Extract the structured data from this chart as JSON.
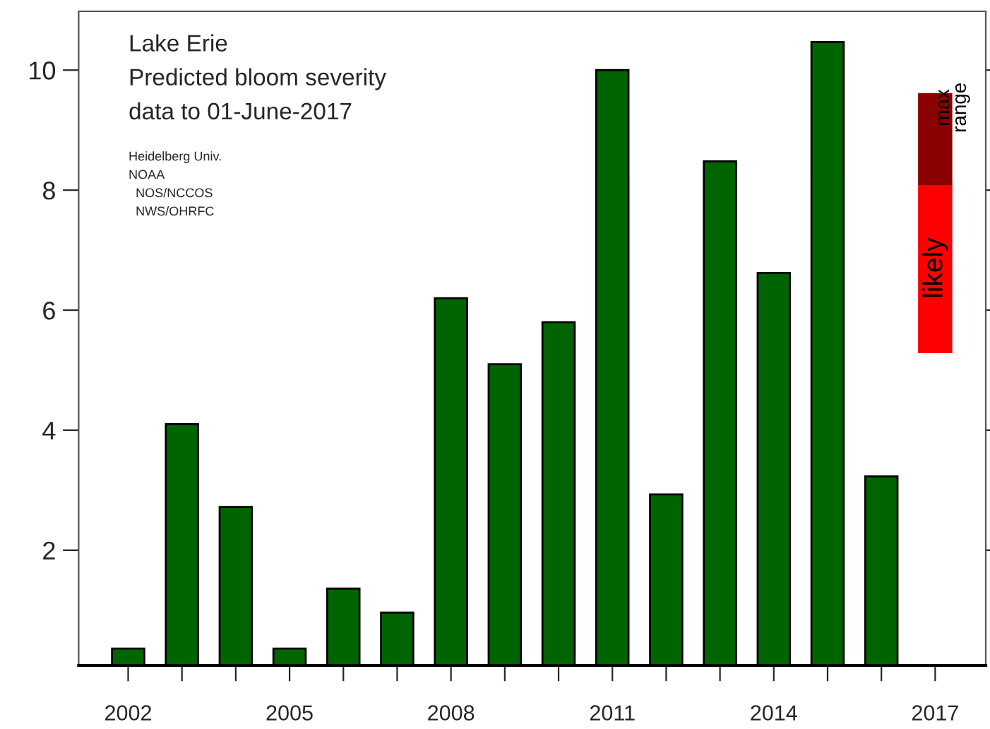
{
  "chart_data": {
    "type": "bar",
    "title": "Lake Erie",
    "subtitle": "Predicted bloom severity",
    "annotations": [
      "data to 01-June-2017",
      "Heidelberg Univ.",
      "NOAA",
      "  NOS/NCCOS",
      "  NWS/OHRFC"
    ],
    "series": [
      {
        "color": "#006400",
        "x": [
          2002,
          2003,
          2004,
          2005,
          2006,
          2007,
          2008,
          2009,
          2010,
          2011,
          2012,
          2013,
          2014,
          2015,
          2016
        ],
        "values": [
          0.36,
          4.1,
          2.72,
          0.36,
          1.36,
          0.96,
          6.2,
          5.1,
          5.8,
          10.0,
          2.93,
          8.48,
          6.62,
          10.47,
          3.23
        ]
      },
      {
        "name": "likely",
        "color": "#ff0000",
        "x": [
          2017
        ],
        "base": [
          5.3
        ],
        "values": [
          2.8
        ]
      },
      {
        "name": "max\nrange",
        "color": "#8b0000",
        "x": [
          2017
        ],
        "base": [
          8.1
        ],
        "values": [
          1.5
        ]
      }
    ],
    "xlim": [
      2001.08,
      2017.94
    ],
    "xticks": [
      {
        "value": 2002,
        "label": "2002"
      },
      {
        "value": 2003,
        "label": null
      },
      {
        "value": 2004,
        "label": null
      },
      {
        "value": 2005,
        "label": "2005"
      },
      {
        "value": 2006,
        "label": null
      },
      {
        "value": 2007,
        "label": null
      },
      {
        "value": 2008,
        "label": "2008"
      },
      {
        "value": 2009,
        "label": null
      },
      {
        "value": 2010,
        "label": null
      },
      {
        "value": 2011,
        "label": "2011"
      },
      {
        "value": 2012,
        "label": null
      },
      {
        "value": 2013,
        "label": null
      },
      {
        "value": 2014,
        "label": "2014"
      },
      {
        "value": 2015,
        "label": null
      },
      {
        "value": 2016,
        "label": null
      },
      {
        "value": 2017,
        "label": "2017"
      }
    ],
    "ylim": [
      0.08,
      10.98
    ],
    "yticks": [
      2,
      4,
      6,
      8,
      10
    ],
    "grid": false,
    "legend": false
  }
}
